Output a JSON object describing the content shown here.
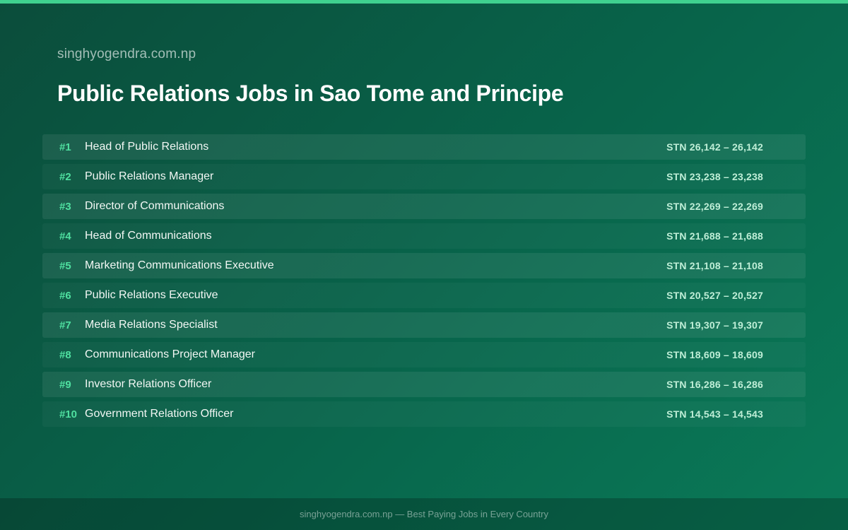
{
  "site_name": "singhyogendra.com.np",
  "page_title": "Public Relations Jobs in Sao Tome and Principe",
  "accent_color": "#3fd18f",
  "jobs": [
    {
      "rank": "#1",
      "title": "Head of Public Relations",
      "salary": "STN 26,142 – 26,142"
    },
    {
      "rank": "#2",
      "title": "Public Relations Manager",
      "salary": "STN 23,238 – 23,238"
    },
    {
      "rank": "#3",
      "title": "Director of Communications",
      "salary": "STN 22,269 – 22,269"
    },
    {
      "rank": "#4",
      "title": "Head of Communications",
      "salary": "STN 21,688 – 21,688"
    },
    {
      "rank": "#5",
      "title": "Marketing Communications Executive",
      "salary": "STN 21,108 – 21,108"
    },
    {
      "rank": "#6",
      "title": "Public Relations Executive",
      "salary": "STN 20,527 – 20,527"
    },
    {
      "rank": "#7",
      "title": "Media Relations Specialist",
      "salary": "STN 19,307 – 19,307"
    },
    {
      "rank": "#8",
      "title": "Communications Project Manager",
      "salary": "STN 18,609 – 18,609"
    },
    {
      "rank": "#9",
      "title": "Investor Relations Officer",
      "salary": "STN 16,286 – 16,286"
    },
    {
      "rank": "#10",
      "title": "Government Relations Officer",
      "salary": "STN 14,543 – 14,543"
    }
  ],
  "footer": {
    "text": "singhyogendra.com.np — Best Paying Jobs in Every Country"
  }
}
